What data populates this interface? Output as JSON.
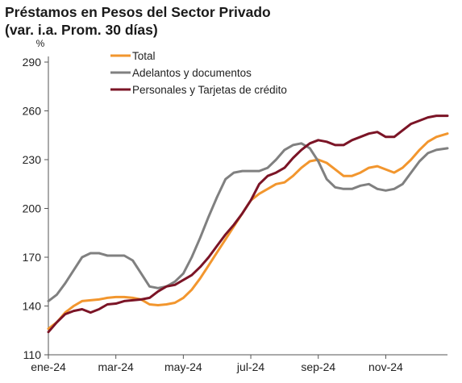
{
  "title_line1": "Préstamos en Pesos del Sector Privado",
  "title_line2": "(var. i.a. Prom. 30 días)",
  "chart_data": {
    "type": "line",
    "unit_label": "%",
    "ylim": [
      110,
      290
    ],
    "yticks": [
      110,
      140,
      170,
      200,
      230,
      260,
      290
    ],
    "xlim": [
      0,
      11.83
    ],
    "xticks": [
      {
        "label": "ene-24",
        "x": 0
      },
      {
        "label": "mar-24",
        "x": 2
      },
      {
        "label": "may-24",
        "x": 4
      },
      {
        "label": "jul-24",
        "x": 6
      },
      {
        "label": "sep-24",
        "x": 8
      },
      {
        "label": "nov-24",
        "x": 10
      }
    ],
    "grid": false,
    "legend_position": "top-left",
    "series": [
      {
        "name": "Total",
        "color": "#F2962E",
        "x": [
          0,
          0.25,
          0.5,
          0.75,
          1,
          1.25,
          1.5,
          1.75,
          2,
          2.25,
          2.5,
          2.75,
          3,
          3.25,
          3.5,
          3.75,
          4,
          4.25,
          4.5,
          4.75,
          5,
          5.25,
          5.5,
          5.75,
          6,
          6.25,
          6.5,
          6.75,
          7,
          7.25,
          7.5,
          7.75,
          8,
          8.25,
          8.5,
          8.75,
          9,
          9.25,
          9.5,
          9.75,
          10,
          10.25,
          10.5,
          10.75,
          11,
          11.25,
          11.5,
          11.83
        ],
        "values": [
          126,
          130,
          136,
          140,
          143,
          143.5,
          144,
          145,
          145.5,
          145.5,
          145,
          144,
          141,
          140.5,
          141,
          142,
          145,
          150,
          157,
          165,
          173,
          181,
          189,
          197,
          205,
          209,
          212,
          215,
          216,
          220,
          225,
          229,
          230,
          228,
          224,
          220,
          220,
          222,
          225,
          226,
          224,
          222,
          225,
          230,
          236,
          241,
          244,
          246
        ]
      },
      {
        "name": "Adelantos y documentos",
        "color": "#808080",
        "x": [
          0,
          0.25,
          0.5,
          0.75,
          1,
          1.25,
          1.5,
          1.75,
          2,
          2.25,
          2.5,
          2.75,
          3,
          3.25,
          3.5,
          3.75,
          4,
          4.25,
          4.5,
          4.75,
          5,
          5.25,
          5.5,
          5.75,
          6,
          6.25,
          6.5,
          6.75,
          7,
          7.25,
          7.5,
          7.75,
          8,
          8.25,
          8.5,
          8.75,
          9,
          9.25,
          9.5,
          9.75,
          10,
          10.25,
          10.5,
          10.75,
          11,
          11.25,
          11.5,
          11.83
        ],
        "values": [
          143,
          147,
          154,
          162,
          170,
          172.5,
          172.5,
          171,
          171,
          171,
          168,
          160,
          152,
          151,
          152,
          155,
          160,
          170,
          182,
          195,
          207,
          218,
          222,
          223,
          223,
          223,
          225,
          230,
          236,
          239,
          240,
          237,
          229,
          218,
          213,
          212,
          212,
          214,
          215,
          212,
          211,
          212,
          215,
          222,
          229,
          234,
          236,
          237
        ]
      },
      {
        "name": "Personales y Tarjetas de crédito",
        "color": "#7B1426",
        "x": [
          0,
          0.25,
          0.5,
          0.75,
          1,
          1.25,
          1.5,
          1.75,
          2,
          2.25,
          2.5,
          2.75,
          3,
          3.25,
          3.5,
          3.75,
          4,
          4.25,
          4.5,
          4.75,
          5,
          5.25,
          5.5,
          5.75,
          6,
          6.25,
          6.5,
          6.75,
          7,
          7.25,
          7.5,
          7.75,
          8,
          8.25,
          8.5,
          8.75,
          9,
          9.25,
          9.5,
          9.75,
          10,
          10.25,
          10.5,
          10.75,
          11,
          11.25,
          11.5,
          11.83
        ],
        "values": [
          124,
          130,
          135,
          137,
          138,
          136,
          138,
          141,
          141.5,
          143,
          143.5,
          144,
          145,
          149,
          152,
          153,
          156,
          159,
          164,
          170,
          177,
          184,
          190,
          197,
          205,
          215,
          220,
          222,
          225,
          231,
          236,
          240,
          242,
          241,
          239,
          239,
          242,
          244,
          246,
          247,
          244,
          244,
          248,
          252,
          254,
          256,
          257,
          257
        ]
      }
    ]
  }
}
